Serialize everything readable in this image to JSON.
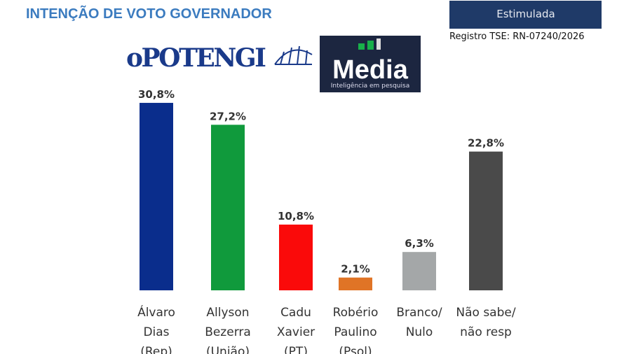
{
  "header": {
    "title": "INTENÇÃO DE VOTO GOVERNADOR",
    "badge": "Estimulada",
    "registration": "Registro TSE: RN-07240/2026"
  },
  "logos": {
    "newspaper": "oPOTENGI",
    "pollster": "Media",
    "pollster_tagline": "Inteligência em pesquisa"
  },
  "chart_data": {
    "type": "bar",
    "categories": [
      [
        "Álvaro",
        "Dias",
        "(Rep)"
      ],
      [
        "Allyson",
        "Bezerra",
        "(União)"
      ],
      [
        "Cadu",
        "Xavier",
        "(PT)"
      ],
      [
        "Robério",
        "Paulino",
        "(Psol)"
      ],
      [
        "Branco/",
        "Nulo"
      ],
      [
        "Não sabe/",
        "não resp"
      ]
    ],
    "values": [
      30.8,
      27.2,
      10.8,
      2.1,
      6.3,
      22.8
    ],
    "value_labels": [
      "30,8%",
      "27,2%",
      "10,8%",
      "2,1%",
      "6,3%",
      "22,8%"
    ],
    "colors": [
      "#0a2d8c",
      "#109a3c",
      "#fa0a0a",
      "#e07426",
      "#a4a7a8",
      "#4a4a4a"
    ]
  }
}
